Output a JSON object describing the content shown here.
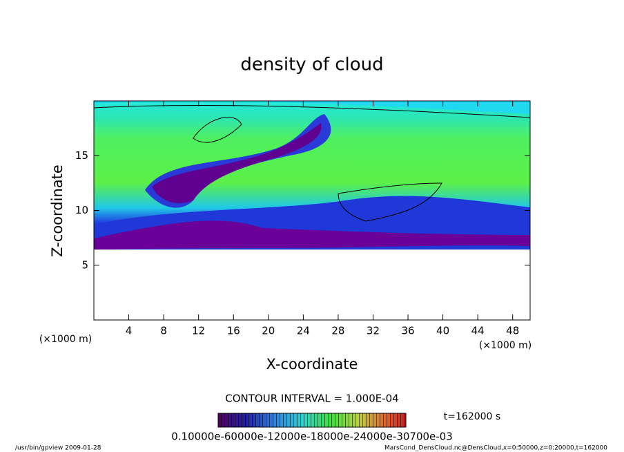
{
  "chart_data": {
    "type": "contour",
    "title": "density of cloud",
    "x_label": "X-coordinate",
    "y_label": "Z-coordinate",
    "x_unit": "(×1000 m)",
    "y_unit": "(×1000 m)",
    "xlim": [
      0,
      50
    ],
    "ylim": [
      0,
      20
    ],
    "xticks": [
      4,
      8,
      12,
      16,
      20,
      24,
      28,
      32,
      36,
      40,
      44,
      48
    ],
    "yticks": [
      5,
      10,
      15
    ],
    "contour_interval": "CONTOUR INTERVAL = 1.000E-04",
    "time": "t=162000 s",
    "colorbar_labels": "0.10000e-60000e-12000e-18000e-24000e-30700e-03"
  },
  "footer": {
    "left": "/usr/bin/gpview  2009-01-28",
    "right": "MarsCond_DensCloud.nc@DensCloud,x=0:50000,z=0:20000,t=162000"
  }
}
